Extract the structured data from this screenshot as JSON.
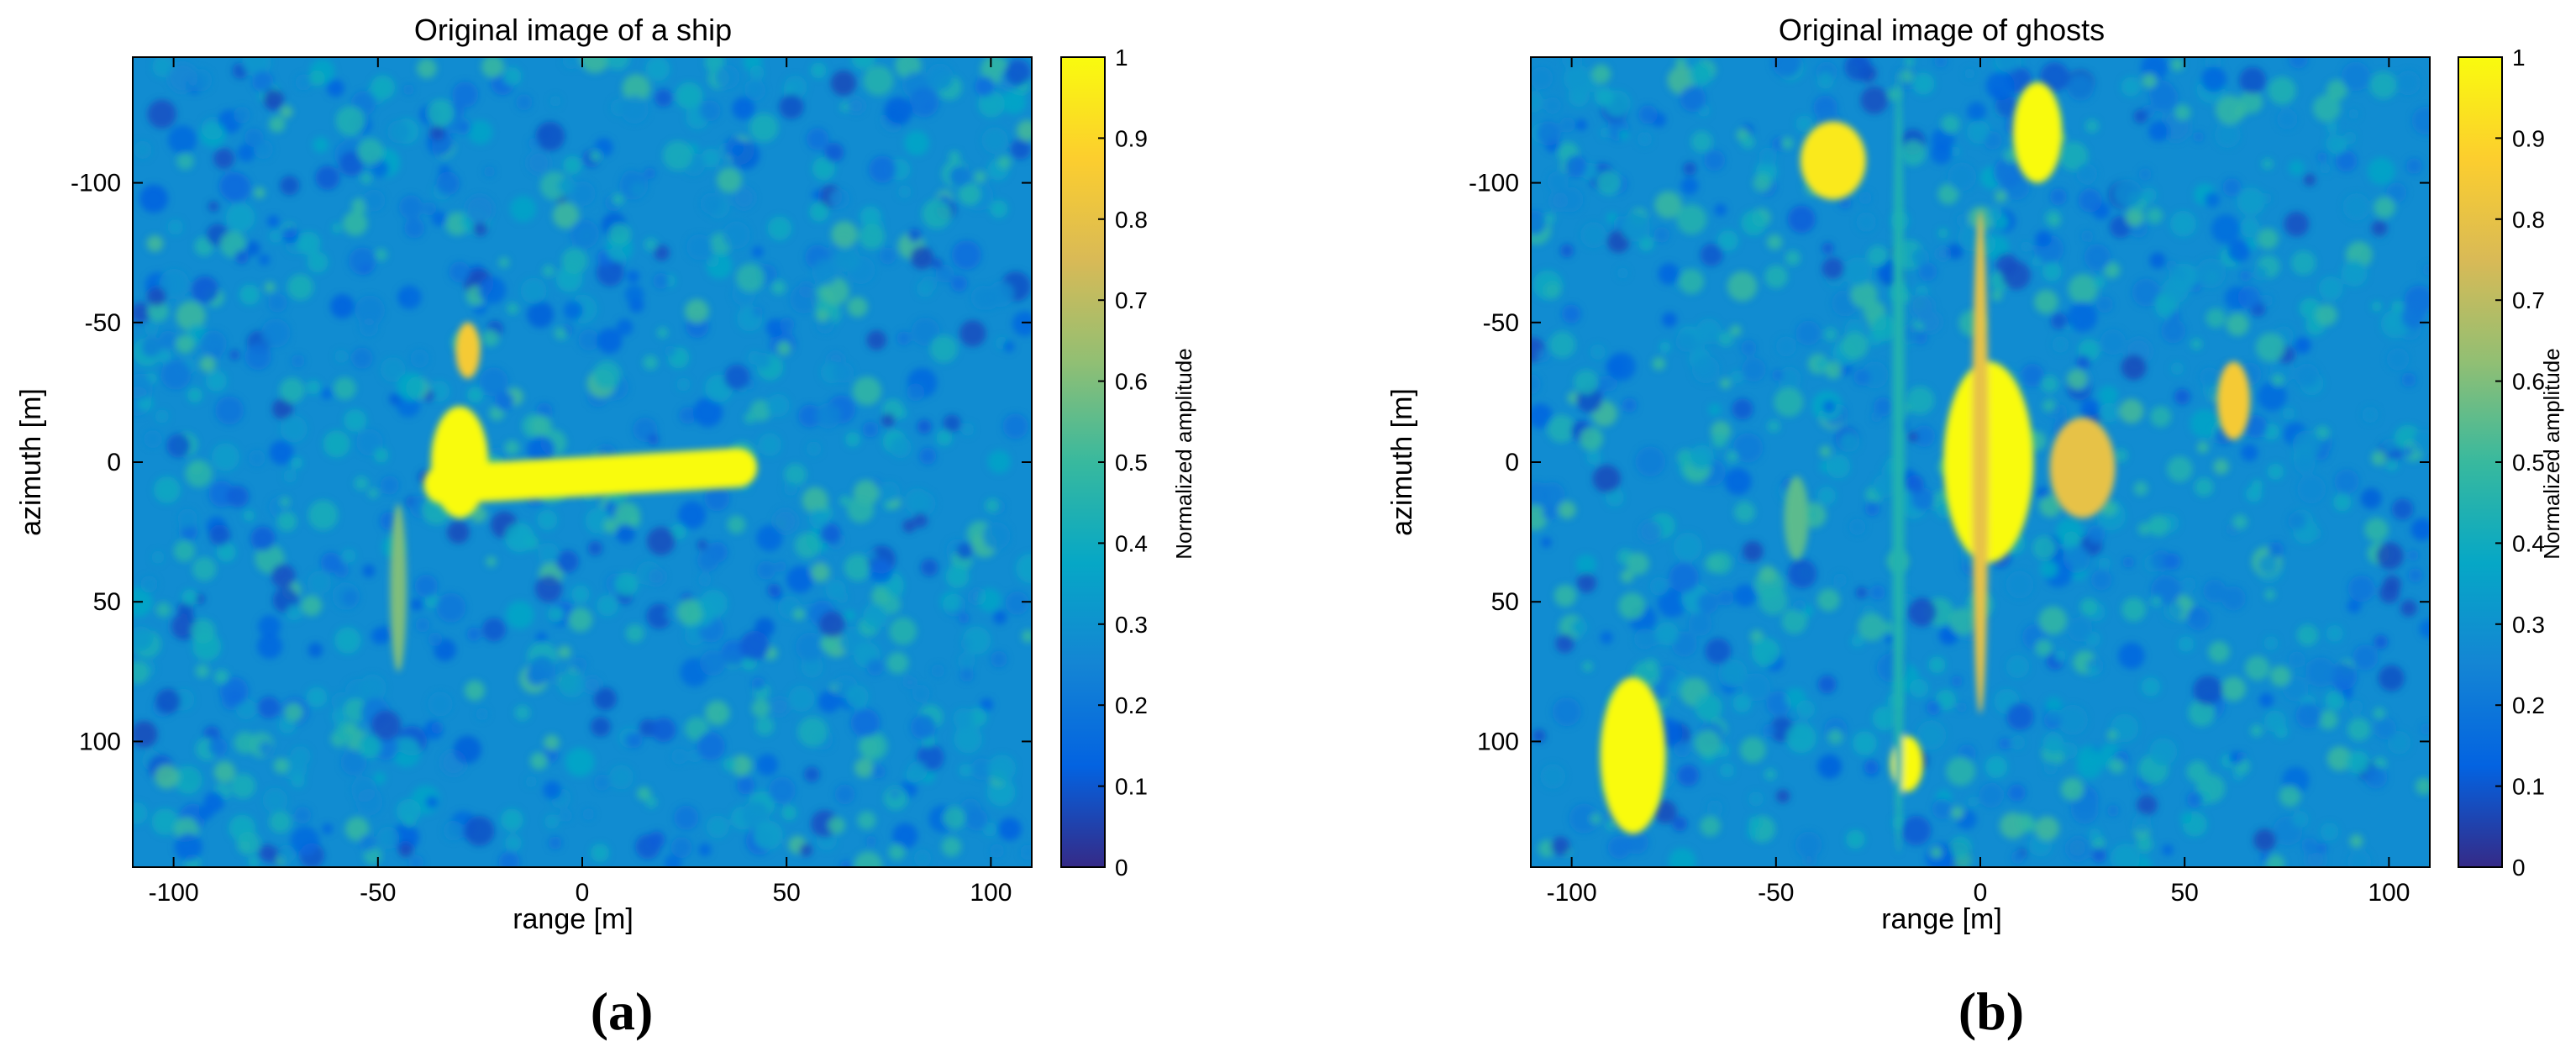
{
  "figure": {
    "panel_labels": [
      "(a)",
      "(b)"
    ]
  },
  "colors": {
    "parula": [
      "#352A87",
      "#0363E1",
      "#1485D4",
      "#06A7C6",
      "#38B99E",
      "#92BF73",
      "#D9BA56",
      "#FCCE2E",
      "#F9FB0E"
    ]
  },
  "chart_data": [
    {
      "type": "heatmap",
      "title": "Original image of a ship",
      "xlabel": "range [m]",
      "ylabel": "azimuth [m]",
      "xlim": [
        -110,
        110
      ],
      "ylim": [
        -145,
        145
      ],
      "y_reversed": true,
      "xticks": [
        -100,
        -50,
        0,
        50,
        100
      ],
      "yticks": [
        -100,
        -50,
        0,
        50,
        100
      ],
      "grid": false,
      "background_amplitude_range": [
        0.15,
        0.4
      ],
      "colorbar": {
        "label": "Normalized amplitude",
        "range": [
          0,
          1
        ],
        "ticks": [
          0,
          0.1,
          0.2,
          0.3,
          0.4,
          0.5,
          0.6,
          0.7,
          0.8,
          0.9,
          1
        ]
      },
      "targets": [
        {
          "name": "ship hull",
          "x": [
            -34,
            38
          ],
          "y": [
            8,
            2
          ],
          "width": 14,
          "amplitude": 1.0
        },
        {
          "name": "ship stern",
          "x": -30,
          "y": 0,
          "rx": 7,
          "ry": 20,
          "amplitude": 1.0
        },
        {
          "name": "stern plume",
          "x": -28,
          "y": -40,
          "rx": 3,
          "ry": 10,
          "amplitude": 0.85
        },
        {
          "name": "wake streak",
          "x": -45,
          "y": 45,
          "rx": 2,
          "ry": 30,
          "amplitude": 0.6
        }
      ]
    },
    {
      "type": "heatmap",
      "title": "Original image of ghosts",
      "xlabel": "range [m]",
      "ylabel": "azimuth [m]",
      "xlim": [
        -110,
        110
      ],
      "ylim": [
        -145,
        145
      ],
      "y_reversed": true,
      "xticks": [
        -100,
        -50,
        0,
        50,
        100
      ],
      "yticks": [
        -100,
        -50,
        0,
        50,
        100
      ],
      "grid": false,
      "background_amplitude_range": [
        0.15,
        0.4
      ],
      "colorbar": {
        "label": "Normalized amplitude",
        "range": [
          0,
          1
        ],
        "ticks": [
          0,
          0.1,
          0.2,
          0.3,
          0.4,
          0.5,
          0.6,
          0.7,
          0.8,
          0.9,
          1
        ]
      },
      "targets": [
        {
          "name": "central target",
          "x": 2,
          "y": 0,
          "rx": 11,
          "ry": 36,
          "amplitude": 1.0
        },
        {
          "name": "central azimuth streak",
          "x": 0,
          "y": 0,
          "rx": 2,
          "ry": 90,
          "amplitude": 0.8
        },
        {
          "name": "ghost right of center",
          "x": 25,
          "y": 2,
          "rx": 8,
          "ry": 18,
          "amplitude": 0.8
        },
        {
          "name": "ghost top-left",
          "x": -36,
          "y": -108,
          "rx": 8,
          "ry": 14,
          "amplitude": 0.95
        },
        {
          "name": "ghost top-center",
          "x": 14,
          "y": -118,
          "rx": 6,
          "ry": 18,
          "amplitude": 1.0
        },
        {
          "name": "ghost bottom-left",
          "x": -85,
          "y": 105,
          "rx": 8,
          "ry": 28,
          "amplitude": 1.0
        },
        {
          "name": "ghost bottom-center",
          "x": -18,
          "y": 108,
          "rx": 4,
          "ry": 10,
          "amplitude": 1.0
        },
        {
          "name": "ghost right",
          "x": 62,
          "y": -22,
          "rx": 4,
          "ry": 14,
          "amplitude": 0.85
        },
        {
          "name": "vertical streak left",
          "x": -20,
          "y": 0,
          "rx": 1.5,
          "ry": 140,
          "amplitude": 0.45
        },
        {
          "name": "vertical streak center-left",
          "x": -45,
          "y": 20,
          "rx": 3,
          "ry": 15,
          "amplitude": 0.55
        }
      ]
    }
  ]
}
